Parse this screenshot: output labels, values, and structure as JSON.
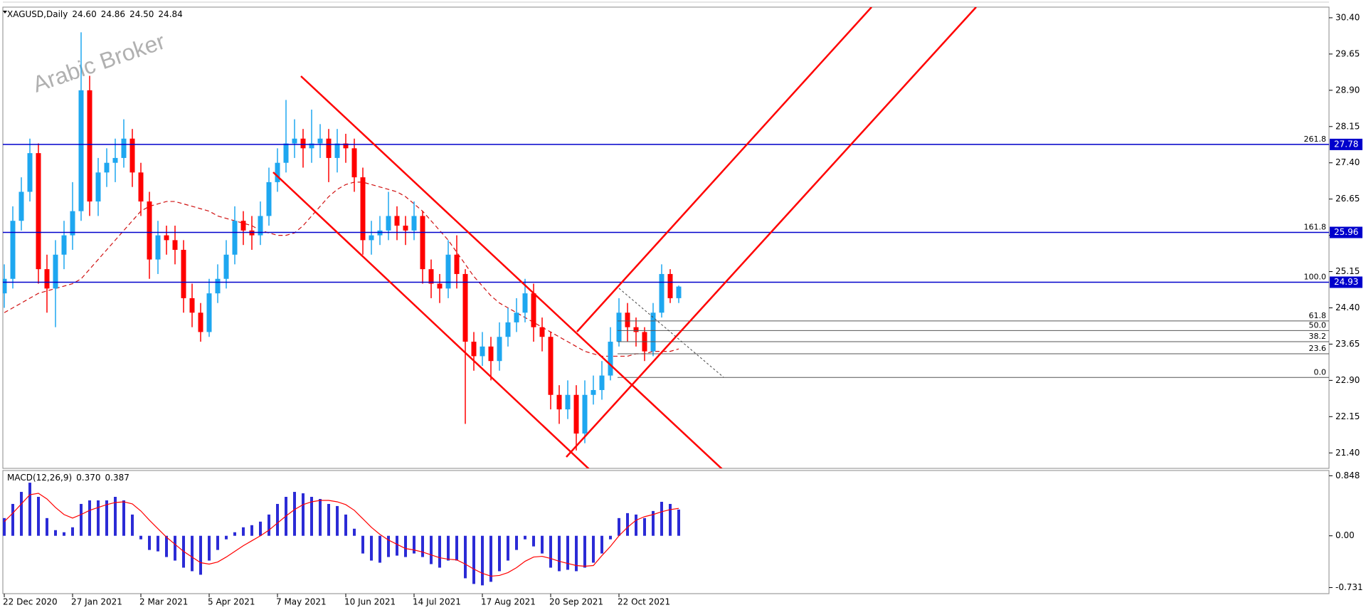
{
  "watermark": "Arabic Broker",
  "chart_data": [
    {
      "type": "candlestick",
      "title": "XAGUSD,Daily",
      "title_values": [
        "24.60",
        "24.86",
        "24.50",
        "24.84"
      ],
      "categories": [
        "22 Dec 2020",
        null,
        null,
        null,
        null,
        null,
        null,
        null,
        "27 Jan 2021",
        null,
        null,
        null,
        null,
        null,
        null,
        null,
        "2 Mar 2021",
        null,
        null,
        null,
        null,
        null,
        null,
        null,
        "5 Apr 2021",
        null,
        null,
        null,
        null,
        null,
        null,
        null,
        "7 May 2021",
        null,
        null,
        null,
        null,
        null,
        null,
        null,
        "10 Jun 2021",
        null,
        null,
        null,
        null,
        null,
        null,
        null,
        "14 Jul 2021",
        null,
        null,
        null,
        null,
        null,
        null,
        null,
        "17 Aug 2021",
        null,
        null,
        null,
        null,
        null,
        null,
        null,
        "20 Sep 2021",
        null,
        null,
        null,
        null,
        null,
        null,
        null,
        "22 Oct 2021",
        null,
        null,
        null,
        null,
        null,
        null,
        null
      ],
      "open": [
        24.7,
        25.0,
        26.2,
        26.8,
        27.6,
        25.2,
        24.8,
        25.5,
        25.9,
        26.4,
        28.9,
        26.6,
        27.2,
        27.4,
        27.5,
        27.9,
        27.2,
        26.6,
        25.4,
        25.9,
        25.8,
        25.6,
        24.6,
        24.3,
        23.9,
        24.7,
        25.0,
        25.5,
        26.2,
        26.0,
        25.9,
        26.3,
        27.0,
        27.4,
        27.8,
        27.9,
        27.7,
        27.8,
        27.9,
        27.5,
        27.8,
        27.7,
        27.1,
        25.8,
        25.9,
        26.0,
        26.3,
        26.1,
        26.0,
        26.3,
        25.2,
        24.9,
        24.8,
        25.5,
        25.1,
        23.7,
        23.4,
        23.6,
        23.3,
        23.8,
        24.1,
        24.3,
        24.7,
        24.0,
        23.8,
        22.6,
        22.3,
        22.6,
        21.8,
        22.6,
        22.7,
        23.0,
        23.7,
        24.3,
        24.0,
        23.9,
        23.5,
        24.3,
        25.1,
        24.6
      ],
      "high": [
        25.3,
        26.5,
        27.1,
        27.9,
        27.8,
        25.5,
        25.8,
        26.2,
        27.0,
        30.1,
        29.2,
        27.5,
        27.7,
        27.9,
        28.3,
        28.1,
        27.4,
        26.8,
        26.2,
        26.1,
        26.1,
        25.8,
        24.9,
        24.5,
        25.0,
        25.3,
        25.8,
        26.5,
        26.4,
        26.3,
        26.6,
        27.3,
        27.7,
        28.7,
        28.3,
        28.1,
        28.5,
        28.2,
        28.1,
        28.1,
        28.0,
        27.9,
        27.3,
        26.2,
        26.3,
        26.8,
        26.5,
        26.3,
        26.6,
        26.4,
        25.4,
        25.1,
        25.8,
        25.9,
        25.2,
        23.9,
        23.9,
        23.8,
        24.1,
        24.4,
        24.6,
        25.0,
        24.9,
        24.2,
        23.9,
        22.8,
        22.9,
        22.8,
        22.9,
        23.0,
        23.3,
        24.0,
        24.6,
        24.5,
        24.2,
        24.0,
        24.5,
        25.3,
        25.2,
        24.86
      ],
      "low": [
        24.4,
        24.8,
        26.0,
        26.6,
        24.9,
        24.3,
        24.0,
        25.2,
        25.6,
        26.2,
        26.3,
        26.3,
        26.9,
        27.0,
        27.3,
        26.9,
        26.3,
        25.0,
        25.1,
        25.5,
        25.3,
        24.3,
        24.0,
        23.7,
        23.8,
        24.5,
        24.8,
        25.3,
        25.7,
        25.6,
        25.7,
        26.1,
        26.8,
        27.2,
        27.5,
        27.3,
        27.4,
        27.5,
        27.0,
        27.2,
        27.4,
        26.8,
        25.5,
        25.5,
        25.7,
        25.8,
        25.8,
        25.7,
        25.8,
        24.9,
        24.6,
        24.5,
        24.6,
        24.8,
        22.0,
        23.1,
        23.2,
        22.9,
        23.1,
        23.6,
        23.9,
        24.1,
        23.7,
        23.5,
        22.3,
        22.0,
        22.1,
        21.45,
        21.6,
        22.4,
        22.5,
        22.9,
        23.6,
        23.7,
        23.6,
        23.3,
        23.4,
        24.2,
        24.5,
        24.5
      ],
      "close": [
        25.0,
        26.2,
        26.8,
        27.6,
        25.2,
        24.8,
        25.5,
        25.9,
        26.4,
        28.9,
        26.6,
        27.2,
        27.4,
        27.5,
        27.9,
        27.2,
        26.6,
        25.4,
        25.9,
        25.8,
        25.6,
        24.6,
        24.3,
        23.9,
        24.7,
        25.0,
        25.5,
        26.2,
        26.0,
        25.9,
        26.3,
        27.0,
        27.4,
        27.8,
        27.9,
        27.7,
        27.8,
        27.9,
        27.5,
        27.8,
        27.7,
        27.1,
        25.8,
        25.9,
        26.0,
        26.3,
        26.1,
        26.0,
        26.3,
        25.2,
        24.9,
        24.8,
        25.5,
        25.1,
        23.7,
        23.4,
        23.6,
        23.3,
        23.8,
        24.1,
        24.3,
        24.7,
        24.0,
        23.8,
        22.6,
        22.3,
        22.6,
        21.8,
        22.6,
        22.7,
        23.0,
        23.7,
        24.3,
        24.0,
        23.9,
        23.5,
        24.3,
        25.1,
        24.6,
        24.84
      ],
      "up_color": "#1ea7f0",
      "down_color": "#ff0000",
      "overlay": {
        "color": "#d01010",
        "values": [
          24.3,
          24.4,
          24.5,
          24.6,
          24.7,
          24.75,
          24.8,
          24.85,
          24.9,
          25.0,
          25.2,
          25.4,
          25.6,
          25.8,
          26.0,
          26.2,
          26.4,
          26.5,
          26.55,
          26.6,
          26.6,
          26.55,
          26.5,
          26.45,
          26.4,
          26.3,
          26.25,
          26.2,
          26.15,
          26.1,
          26.0,
          25.95,
          25.9,
          25.9,
          25.95,
          26.1,
          26.3,
          26.5,
          26.7,
          26.85,
          26.95,
          27.0,
          27.0,
          26.95,
          26.9,
          26.85,
          26.8,
          26.7,
          26.55,
          26.4,
          26.2,
          26.0,
          25.8,
          25.55,
          25.3,
          25.05,
          24.85,
          24.65,
          24.5,
          24.4,
          24.3,
          24.2,
          24.1,
          24.0,
          23.9,
          23.8,
          23.7,
          23.6,
          23.5,
          23.45,
          23.4,
          23.4,
          23.4,
          23.4,
          23.45,
          23.45,
          23.5,
          23.5,
          23.5,
          23.55
        ]
      },
      "ylim": [
        21.08,
        30.62
      ],
      "yticks": [
        {
          "value": 30.4,
          "label": "30.40"
        },
        29.65,
        {
          "value": 28.9,
          "label": "28.90"
        },
        28.15,
        {
          "value": 27.4,
          "label": "27.40"
        },
        26.65,
        {
          "value": 25.9,
          "label": "25.90"
        },
        25.15,
        {
          "value": 24.4,
          "label": "24.40"
        },
        23.65,
        {
          "value": 22.9,
          "label": "22.90"
        },
        22.15,
        {
          "value": 21.4,
          "label": "21.40"
        }
      ],
      "levels": [
        27.78,
        25.96,
        24.93
      ],
      "level_color": "#0000cc",
      "fibonacci": [
        {
          "level": "261.8",
          "value": 27.78
        },
        {
          "level": "161.8",
          "value": 25.96
        },
        {
          "level": "100.0",
          "value": 24.93
        },
        {
          "level": "61.8",
          "value": 24.13
        },
        {
          "level": "50.0",
          "value": 23.93
        },
        {
          "level": "38.2",
          "value": 23.7
        },
        {
          "level": "23.6",
          "value": 23.45
        },
        {
          "level": "0.0",
          "value": 22.96
        }
      ]
    },
    {
      "type": "macd",
      "title": "MACD(12,26,9)",
      "title_values": [
        "0.370",
        "0.387"
      ],
      "histogram": {
        "color": "#2b2bd6",
        "values": [
          0.25,
          0.45,
          0.62,
          0.75,
          0.55,
          0.25,
          0.08,
          0.05,
          0.12,
          0.45,
          0.5,
          0.5,
          0.5,
          0.55,
          0.5,
          0.3,
          -0.05,
          -0.2,
          -0.22,
          -0.3,
          -0.35,
          -0.45,
          -0.5,
          -0.55,
          -0.35,
          -0.2,
          -0.05,
          0.05,
          0.12,
          0.15,
          0.2,
          0.3,
          0.45,
          0.55,
          0.62,
          0.6,
          0.55,
          0.52,
          0.45,
          0.42,
          0.3,
          0.1,
          -0.25,
          -0.35,
          -0.38,
          -0.3,
          -0.28,
          -0.3,
          -0.25,
          -0.3,
          -0.4,
          -0.45,
          -0.35,
          -0.35,
          -0.6,
          -0.68,
          -0.7,
          -0.65,
          -0.5,
          -0.35,
          -0.2,
          -0.05,
          -0.15,
          -0.25,
          -0.45,
          -0.5,
          -0.48,
          -0.5,
          -0.45,
          -0.38,
          -0.25,
          -0.05,
          0.25,
          0.32,
          0.3,
          0.25,
          0.35,
          0.48,
          0.45,
          0.37
        ]
      },
      "signal": {
        "color": "#ff0000",
        "values": [
          0.2,
          0.32,
          0.45,
          0.58,
          0.6,
          0.52,
          0.4,
          0.3,
          0.25,
          0.3,
          0.36,
          0.4,
          0.44,
          0.47,
          0.48,
          0.45,
          0.35,
          0.22,
          0.1,
          -0.02,
          -0.12,
          -0.22,
          -0.3,
          -0.38,
          -0.4,
          -0.37,
          -0.3,
          -0.22,
          -0.14,
          -0.07,
          0,
          0.08,
          0.18,
          0.28,
          0.37,
          0.44,
          0.48,
          0.5,
          0.5,
          0.48,
          0.44,
          0.36,
          0.24,
          0.12,
          0.02,
          -0.06,
          -0.12,
          -0.18,
          -0.2,
          -0.23,
          -0.27,
          -0.31,
          -0.33,
          -0.34,
          -0.4,
          -0.47,
          -0.53,
          -0.57,
          -0.56,
          -0.52,
          -0.45,
          -0.36,
          -0.3,
          -0.29,
          -0.32,
          -0.36,
          -0.39,
          -0.42,
          -0.43,
          -0.42,
          -0.28,
          -0.15,
          0.0,
          0.12,
          0.22,
          0.27,
          0.3,
          0.34,
          0.37,
          0.387
        ]
      },
      "ylim": [
        -0.817,
        0.922
      ],
      "yticks": [
        0.848,
        {
          "value": 0,
          "label": "0.00"
        },
        -0.731
      ]
    }
  ]
}
